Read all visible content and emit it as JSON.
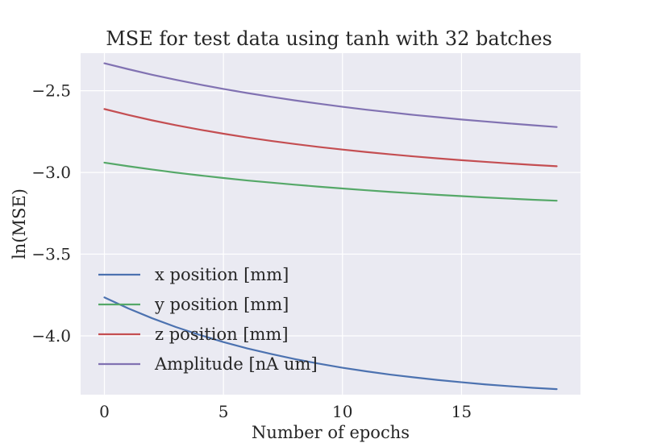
{
  "chart_data": {
    "type": "line",
    "title": "MSE for test data using tanh with 32 batches",
    "xlabel": "Number of epochs",
    "ylabel": "ln(MSE)",
    "xlim": [
      -1,
      20
    ],
    "ylim": [
      -4.36,
      -2.27
    ],
    "xticks": [
      0,
      5,
      10,
      15
    ],
    "yticks": [
      -2.5,
      -3.0,
      -3.5,
      -4.0
    ],
    "ytick_labels": [
      "−2.5",
      "−3.0",
      "−3.5",
      "−4.0"
    ],
    "grid": true,
    "legend_position": "lower-left",
    "background": "#eaeaf2",
    "x": [
      0,
      1,
      2,
      3,
      4,
      5,
      6,
      7,
      8,
      9,
      10,
      11,
      12,
      13,
      14,
      15,
      16,
      17,
      18,
      19
    ],
    "series": [
      {
        "name": "x position [mm]",
        "color": "#4c72b0",
        "values": [
          -3.765,
          -3.832,
          -3.892,
          -3.946,
          -3.994,
          -4.038,
          -4.077,
          -4.111,
          -4.142,
          -4.17,
          -4.195,
          -4.217,
          -4.237,
          -4.254,
          -4.27,
          -4.284,
          -4.297,
          -4.308,
          -4.318,
          -4.326
        ]
      },
      {
        "name": "y position [mm]",
        "color": "#55a868",
        "values": [
          -2.94,
          -2.962,
          -2.982,
          -3.001,
          -3.018,
          -3.034,
          -3.049,
          -3.062,
          -3.075,
          -3.087,
          -3.098,
          -3.109,
          -3.119,
          -3.128,
          -3.137,
          -3.145,
          -3.153,
          -3.16,
          -3.167,
          -3.173
        ]
      },
      {
        "name": "z position [mm]",
        "color": "#c44e52",
        "values": [
          -2.612,
          -2.648,
          -2.681,
          -2.711,
          -2.738,
          -2.763,
          -2.786,
          -2.807,
          -2.826,
          -2.844,
          -2.86,
          -2.875,
          -2.889,
          -2.902,
          -2.914,
          -2.925,
          -2.935,
          -2.945,
          -2.954,
          -2.962
        ]
      },
      {
        "name": "Amplitude [nA um]",
        "color": "#8172b2",
        "values": [
          -2.332,
          -2.368,
          -2.402,
          -2.433,
          -2.462,
          -2.489,
          -2.514,
          -2.537,
          -2.559,
          -2.579,
          -2.598,
          -2.616,
          -2.632,
          -2.648,
          -2.662,
          -2.676,
          -2.688,
          -2.7,
          -2.711,
          -2.722
        ]
      }
    ]
  }
}
